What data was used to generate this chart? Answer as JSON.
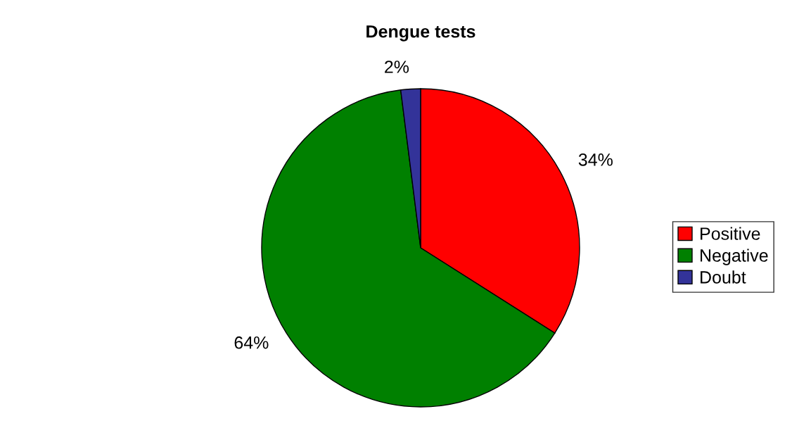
{
  "chart_data": {
    "type": "pie",
    "title": "Dengue tests",
    "categories": [
      "Positive",
      "Negative",
      "Doubt"
    ],
    "values": [
      34,
      64,
      2
    ],
    "colors": [
      "#ff0000",
      "#008000",
      "#333399"
    ],
    "value_labels": [
      "34%",
      "64%",
      "2%"
    ],
    "legend": "right"
  }
}
